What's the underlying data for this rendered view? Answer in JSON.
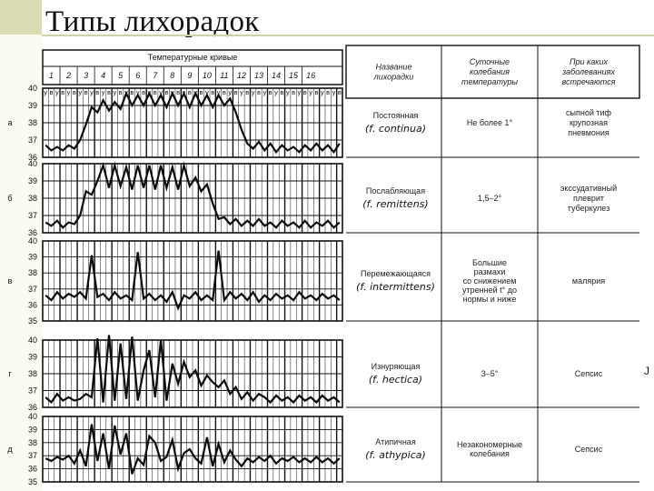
{
  "title": "Типы лихорадок",
  "chart_header": "Температурные кривые",
  "day_labels": [
    "1",
    "2",
    "3",
    "4",
    "5",
    "6",
    "7",
    "8",
    "9",
    "10",
    "11",
    "12",
    "13",
    "14",
    "15",
    "16"
  ],
  "am_label": "у",
  "pm_label": "в",
  "edge_mark": "J",
  "table": {
    "col_headers": [
      [
        "Название",
        "лихорадки"
      ],
      [
        "Суточные",
        "колебания",
        "температуры"
      ],
      [
        "При каких",
        "заболеваниях",
        "встречаются"
      ]
    ],
    "rows": [
      {
        "letter": "а",
        "name": "Постоянная",
        "latin": "(f. continua)",
        "range": [
          "Не более 1°"
        ],
        "diseases": [
          "сыпной тиф",
          "крупозная",
          "пневмония"
        ]
      },
      {
        "letter": "б",
        "name": "Послабляющая",
        "latin": "(f. remittens)",
        "range": [
          "1,5–2°"
        ],
        "diseases": [
          "экссудативный",
          "плеврит",
          "туберкулез"
        ]
      },
      {
        "letter": "в",
        "name": "Перемежающаяся",
        "latin": "(f. intermittens)",
        "range": [
          "Большие",
          "размахи",
          "со снижением",
          "утренней t° до",
          "нормы и ниже"
        ],
        "diseases": [
          "малярия"
        ]
      },
      {
        "letter": "г",
        "name": "Изнуряющая",
        "latin": "(f. hectica)",
        "range": [
          "3–5°"
        ],
        "diseases": [
          "Сепсис"
        ]
      },
      {
        "letter": "д",
        "name": "Атипичная",
        "latin": "(f. athypica)",
        "range": [
          "Незакономерные",
          "колебания"
        ],
        "diseases": [
          "Сепсис"
        ]
      }
    ]
  },
  "chart_data": [
    {
      "type": "line",
      "title": "Постоянная",
      "ylim": [
        36,
        40
      ],
      "yticks": [
        36,
        37,
        38,
        39,
        40
      ],
      "values": [
        36.7,
        36.4,
        36.6,
        36.4,
        36.7,
        36.5,
        37.0,
        37.9,
        38.9,
        38.6,
        39.3,
        38.7,
        39.2,
        38.8,
        39.7,
        39.0,
        39.6,
        39.0,
        39.7,
        39.0,
        39.6,
        38.9,
        39.7,
        39.0,
        39.7,
        38.9,
        39.7,
        39.0,
        39.6,
        38.9,
        39.6,
        39.0,
        39.4,
        38.6,
        37.6,
        36.8,
        36.5,
        36.9,
        36.4,
        36.8,
        36.3,
        36.7,
        36.4,
        36.6,
        36.3,
        36.7,
        36.4,
        36.8,
        36.4,
        36.7,
        36.3,
        36.8
      ]
    },
    {
      "type": "line",
      "title": "Послабляющая",
      "ylim": [
        36,
        40
      ],
      "yticks": [
        36,
        37,
        38,
        39,
        40
      ],
      "values": [
        36.6,
        36.4,
        36.7,
        36.3,
        36.6,
        36.5,
        37.0,
        38.4,
        38.2,
        39.0,
        39.9,
        38.6,
        39.9,
        38.7,
        39.8,
        38.5,
        39.9,
        38.6,
        39.9,
        38.5,
        39.9,
        38.6,
        39.8,
        38.5,
        39.9,
        38.7,
        39.2,
        38.4,
        38.8,
        37.7,
        36.8,
        36.9,
        36.5,
        36.8,
        36.4,
        36.7,
        36.4,
        36.8,
        36.4,
        36.6,
        36.3,
        36.7,
        36.4,
        36.6,
        36.3,
        36.7,
        36.3,
        36.6,
        36.4,
        36.7,
        36.3,
        36.6
      ]
    },
    {
      "type": "line",
      "title": "Перемежающаяся",
      "ylim": [
        35,
        40
      ],
      "yticks": [
        35,
        36,
        37,
        38,
        39,
        40
      ],
      "values": [
        36.6,
        36.3,
        36.8,
        36.4,
        36.7,
        36.5,
        36.8,
        36.4,
        39.1,
        36.5,
        36.7,
        36.3,
        36.8,
        36.4,
        36.6,
        36.3,
        39.3,
        36.4,
        36.7,
        36.3,
        36.6,
        36.2,
        36.8,
        35.8,
        36.6,
        36.4,
        36.8,
        36.3,
        36.6,
        36.3,
        39.4,
        36.3,
        36.8,
        36.4,
        36.7,
        36.3,
        36.8,
        36.2,
        36.6,
        36.3,
        36.7,
        36.4,
        36.6,
        36.3,
        36.8,
        36.4,
        36.6,
        36.3,
        36.7,
        36.4,
        36.6,
        36.3
      ]
    },
    {
      "type": "line",
      "title": "Изнуряющая",
      "ylim": [
        36,
        40
      ],
      "yticks": [
        36,
        37,
        38,
        39,
        40
      ],
      "values": [
        36.6,
        36.3,
        36.8,
        36.4,
        36.6,
        36.4,
        36.5,
        36.8,
        36.6,
        40.1,
        36.3,
        40.3,
        36.4,
        39.8,
        36.5,
        40.2,
        36.4,
        38.2,
        39.4,
        36.6,
        40.0,
        36.4,
        38.6,
        37.4,
        38.7,
        37.8,
        38.2,
        37.3,
        37.9,
        37.5,
        37.2,
        37.6,
        36.8,
        37.2,
        36.5,
        36.9,
        36.4,
        36.8,
        36.6,
        36.3,
        36.7,
        36.4,
        36.6,
        36.3,
        36.7,
        36.4,
        36.6,
        36.3,
        36.7,
        36.4,
        36.6,
        36.3
      ]
    },
    {
      "type": "line",
      "title": "Атипичная",
      "ylim": [
        35,
        40
      ],
      "yticks": [
        35,
        36,
        37,
        38,
        39,
        40
      ],
      "values": [
        36.8,
        36.6,
        36.9,
        36.7,
        37.0,
        36.4,
        37.4,
        36.2,
        39.4,
        36.6,
        38.7,
        36.0,
        39.3,
        37.1,
        38.7,
        35.6,
        36.8,
        36.3,
        38.5,
        38.0,
        36.6,
        36.9,
        38.2,
        36.0,
        37.2,
        37.5,
        36.8,
        36.4,
        38.4,
        36.2,
        37.9,
        36.5,
        37.4,
        36.7,
        36.2,
        36.8,
        36.5,
        36.9,
        36.6,
        37.0,
        36.4,
        36.8,
        36.6,
        36.9,
        36.5,
        36.8,
        36.5,
        36.9,
        36.5,
        36.8,
        36.4,
        36.8
      ]
    }
  ]
}
